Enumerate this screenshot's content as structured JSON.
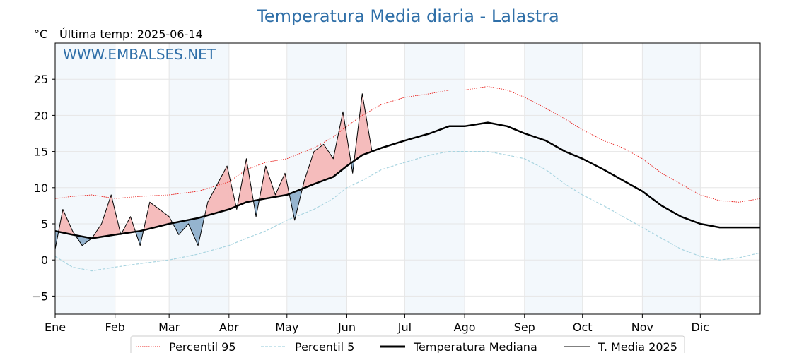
{
  "chart_data": {
    "type": "line",
    "title": "Temperatura Media diaria - Lalastra",
    "unit": "°C",
    "last_temp_label": "Última temp: 2025-06-14",
    "watermark": "WWW.EMBALSES.NET",
    "xlim": [
      1,
      366
    ],
    "ylim": [
      -7.5,
      30
    ],
    "yticks": [
      -5,
      0,
      5,
      10,
      15,
      20,
      25
    ],
    "ytick_labels": [
      "−5",
      "0",
      "5",
      "10",
      "15",
      "20",
      "25"
    ],
    "month_ticks": [
      1,
      32,
      60,
      91,
      121,
      152,
      182,
      213,
      244,
      274,
      305,
      335,
      366
    ],
    "month_labels": [
      "Ene",
      "Feb",
      "Mar",
      "Abr",
      "May",
      "Jun",
      "Jul",
      "Ago",
      "Sep",
      "Oct",
      "Nov",
      "Dic"
    ],
    "grid": true,
    "legend_position": "bottom",
    "series": [
      {
        "name": "Percentil 95",
        "style": "dotted",
        "color": "#e8201c",
        "x": [
          1,
          10,
          20,
          32,
          45,
          60,
          75,
          91,
          100,
          110,
          121,
          135,
          145,
          152,
          160,
          170,
          182,
          195,
          205,
          213,
          225,
          235,
          244,
          255,
          265,
          274,
          285,
          295,
          305,
          315,
          325,
          335,
          345,
          355,
          366
        ],
        "y": [
          8.5,
          8.8,
          9.0,
          8.5,
          8.8,
          9.0,
          9.5,
          10.8,
          12.5,
          13.5,
          14.0,
          15.5,
          17.0,
          18.5,
          20.0,
          21.5,
          22.5,
          23.0,
          23.5,
          23.5,
          24.0,
          23.5,
          22.5,
          21.0,
          19.5,
          18.0,
          16.5,
          15.5,
          14.0,
          12.0,
          10.5,
          9.0,
          8.2,
          8.0,
          8.5
        ]
      },
      {
        "name": "Percentil 5",
        "style": "dashed",
        "color": "#a8d4e0",
        "x": [
          1,
          10,
          20,
          32,
          45,
          60,
          75,
          91,
          100,
          110,
          121,
          135,
          145,
          152,
          160,
          170,
          182,
          195,
          205,
          213,
          225,
          235,
          244,
          255,
          265,
          274,
          285,
          295,
          305,
          315,
          325,
          335,
          345,
          355,
          366
        ],
        "y": [
          0.5,
          -1.0,
          -1.5,
          -1.0,
          -0.5,
          0.0,
          0.8,
          2.0,
          3.0,
          4.0,
          5.5,
          7.0,
          8.5,
          10.0,
          11.0,
          12.5,
          13.5,
          14.5,
          15.0,
          15.0,
          15.0,
          14.5,
          14.0,
          12.5,
          10.5,
          9.0,
          7.5,
          6.0,
          4.5,
          3.0,
          1.5,
          0.5,
          0.0,
          0.3,
          1.0
        ]
      },
      {
        "name": "Temperatura Mediana",
        "style": "solid-thick",
        "color": "#000000",
        "x": [
          1,
          10,
          20,
          32,
          45,
          60,
          75,
          91,
          100,
          110,
          121,
          135,
          145,
          152,
          160,
          170,
          182,
          195,
          205,
          213,
          225,
          235,
          244,
          255,
          265,
          274,
          285,
          295,
          305,
          315,
          325,
          335,
          345,
          355,
          366
        ],
        "y": [
          4.0,
          3.5,
          3.0,
          3.5,
          4.0,
          5.0,
          5.8,
          7.0,
          8.0,
          8.5,
          9.0,
          10.5,
          11.5,
          13.0,
          14.5,
          15.5,
          16.5,
          17.5,
          18.5,
          18.5,
          19.0,
          18.5,
          17.5,
          16.5,
          15.0,
          14.0,
          12.5,
          11.0,
          9.5,
          7.5,
          6.0,
          5.0,
          4.5,
          4.5,
          4.5
        ]
      },
      {
        "name": "T. Media 2025",
        "style": "solid-thin",
        "color": "#000000",
        "x": [
          1,
          5,
          10,
          15,
          20,
          25,
          30,
          35,
          40,
          45,
          50,
          55,
          60,
          65,
          70,
          75,
          80,
          85,
          90,
          95,
          100,
          105,
          110,
          115,
          120,
          125,
          130,
          135,
          140,
          145,
          150,
          155,
          160,
          165
        ],
        "y": [
          1.5,
          7.0,
          4.0,
          2.0,
          3.0,
          5.0,
          9.0,
          3.5,
          6.0,
          2.0,
          8.0,
          7.0,
          6.0,
          3.5,
          5.0,
          2.0,
          8.0,
          10.5,
          13.0,
          7.0,
          14.0,
          6.0,
          13.0,
          9.0,
          12.0,
          5.5,
          11.0,
          15.0,
          16.0,
          14.0,
          20.5,
          12.0,
          23.0,
          15.0
        ]
      }
    ]
  }
}
